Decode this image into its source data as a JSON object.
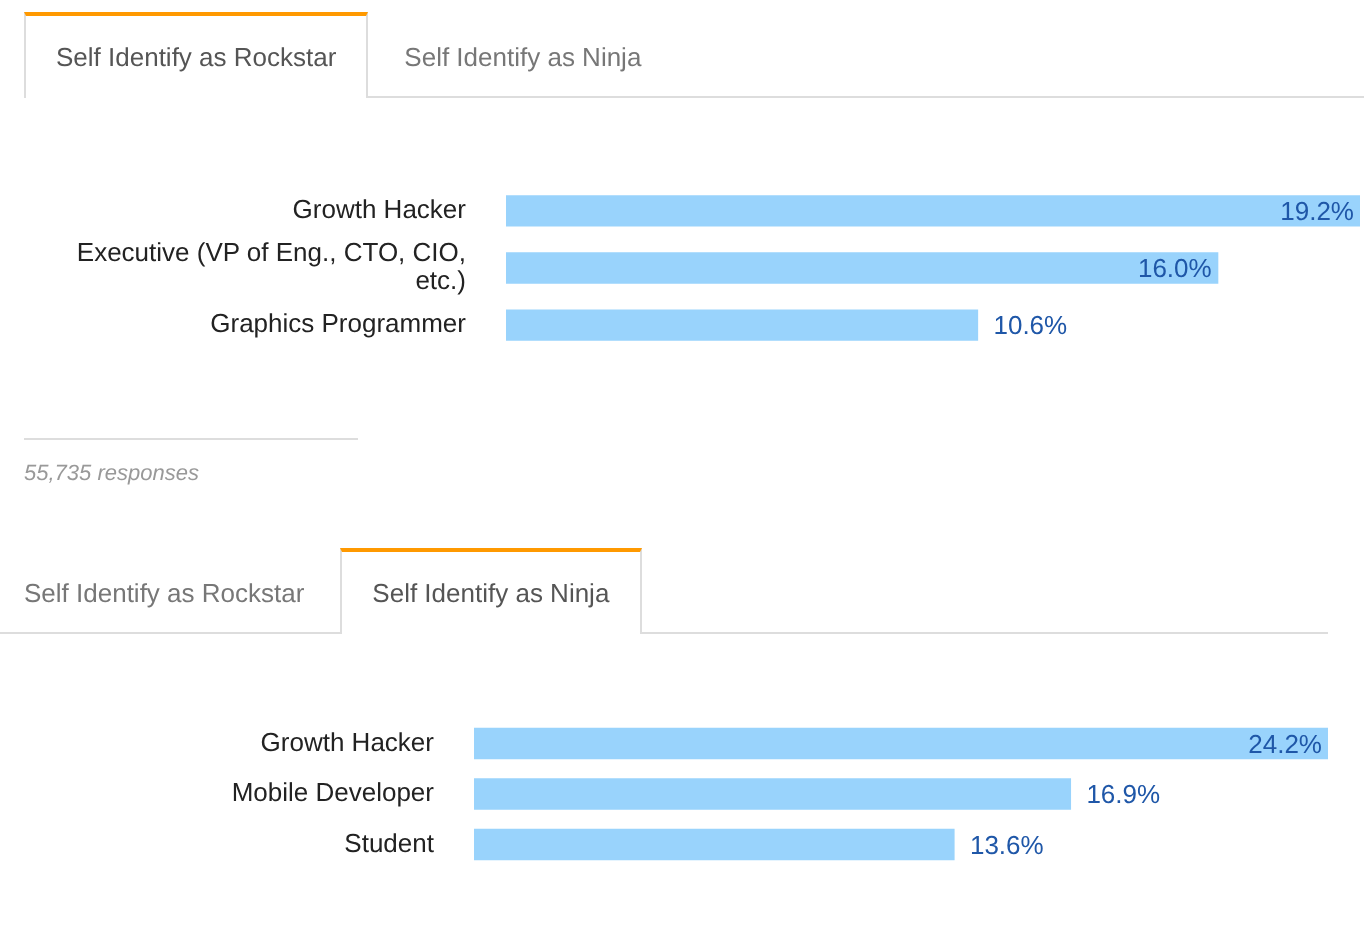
{
  "chart_data": [
    {
      "type": "bar",
      "orientation": "horizontal",
      "title": "Self Identify as Rockstar",
      "categories": [
        "Growth Hacker",
        "Executive (VP of Eng., CTO, CIO, etc.)",
        "Graphics Programmer"
      ],
      "values": [
        19.2,
        16,
        10.6
      ],
      "value_labels": [
        "19.2%",
        "16.0%",
        "10.6%"
      ],
      "color": "#99d3fc",
      "annotations": [
        "Self Identify as Ninja",
        "55,735 responses"
      ]
    },
    {
      "type": "bar",
      "orientation": "horizontal",
      "title": "Self Identify as Ninja",
      "categories": [
        "Growth Hacker",
        "Mobile Developer",
        "Student"
      ],
      "values": [
        24.2,
        16.9,
        13.6
      ],
      "value_labels": [
        "24.2%",
        "16.9%",
        "13.6%"
      ],
      "color": "#99d3fc",
      "annotations": [
        "Self Identify as Rockstar"
      ]
    }
  ]
}
